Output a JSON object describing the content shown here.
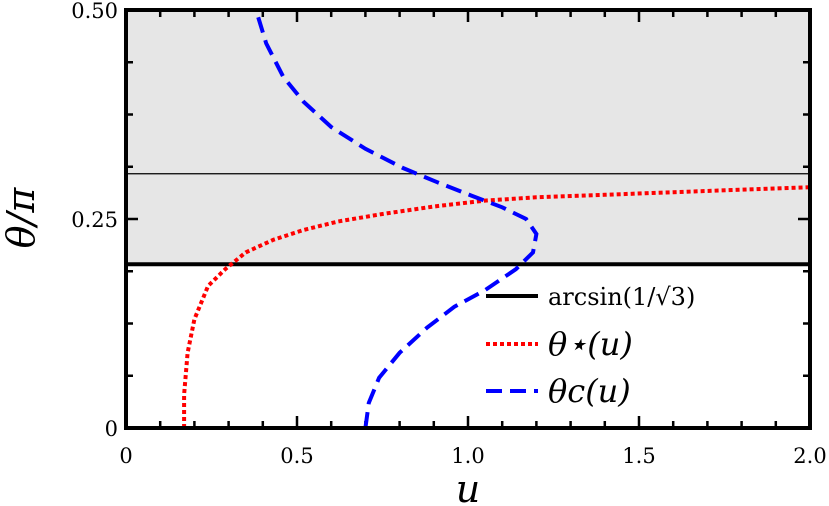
{
  "chart_data": {
    "type": "line",
    "xlabel": "u",
    "ylabel": "θ/π",
    "xlim": [
      0,
      2.0
    ],
    "ylim": [
      0,
      0.5
    ],
    "x_ticks": [
      "0",
      "0.5",
      "1.0",
      "1.5",
      "2.0"
    ],
    "y_ticks": [
      "0",
      "0.25",
      "0.50"
    ],
    "shaded_region": {
      "y_from": 0.1959,
      "y_to": 0.5,
      "color": "#e6e6e6"
    },
    "reference_lines": [
      {
        "name": "arcsin(1/√3)",
        "y": 0.1959,
        "color": "#000000",
        "style": "solid-thick"
      },
      {
        "y": 0.3041,
        "color": "#000000",
        "style": "solid-thin"
      }
    ],
    "series": [
      {
        "name": "θ⋆(u)",
        "color": "#ff0000",
        "style": "dotted",
        "x": [
          0.17,
          0.17,
          0.18,
          0.2,
          0.24,
          0.29,
          0.35,
          0.43,
          0.52,
          0.62,
          0.75,
          0.9,
          1.05,
          1.2,
          1.4,
          1.6,
          1.8,
          2.0
        ],
        "y": [
          0.0,
          0.04,
          0.09,
          0.13,
          0.17,
          0.19,
          0.21,
          0.225,
          0.237,
          0.247,
          0.256,
          0.265,
          0.272,
          0.276,
          0.279,
          0.282,
          0.285,
          0.288
        ]
      },
      {
        "name": "θc(u)",
        "color": "#0000ff",
        "style": "dashed",
        "x": [
          0.7,
          0.71,
          0.74,
          0.8,
          0.88,
          0.96,
          1.05,
          1.14,
          1.19,
          1.2,
          1.17,
          1.1,
          1.01,
          0.91,
          0.81,
          0.7,
          0.6,
          0.52,
          0.46,
          0.41,
          0.38
        ],
        "y": [
          0.0,
          0.03,
          0.06,
          0.09,
          0.12,
          0.145,
          0.165,
          0.19,
          0.21,
          0.232,
          0.25,
          0.264,
          0.278,
          0.294,
          0.311,
          0.334,
          0.36,
          0.39,
          0.42,
          0.46,
          0.5
        ]
      }
    ]
  }
}
